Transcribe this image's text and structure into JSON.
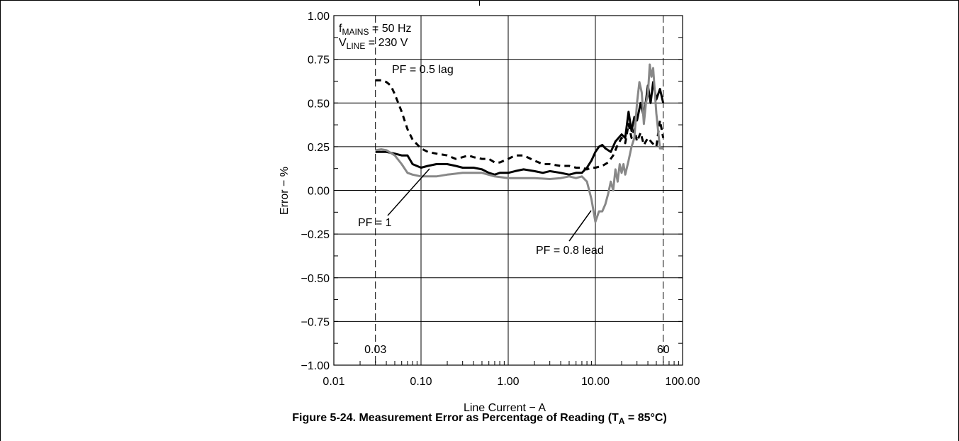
{
  "figure": {
    "caption_prefix": "Figure 5-24. Measurement Error as Percentage of Reading (T",
    "caption_sub": "A",
    "caption_suffix": " = 85°C)"
  },
  "chart_data": {
    "type": "line",
    "xscale": "log",
    "xlabel": "Line Current − A",
    "ylabel": "Error − %",
    "xlim": [
      0.01,
      100
    ],
    "ylim": [
      -1.0,
      1.0
    ],
    "grid": true,
    "x_ticks": [
      {
        "value": 0.01,
        "label": "0.01"
      },
      {
        "value": 0.1,
        "label": "0.10"
      },
      {
        "value": 1,
        "label": "1.00"
      },
      {
        "value": 10,
        "label": "10.00"
      },
      {
        "value": 100,
        "label": "100.00"
      }
    ],
    "y_ticks": [
      {
        "value": 1.0,
        "label": "1.00"
      },
      {
        "value": 0.75,
        "label": "0.75"
      },
      {
        "value": 0.5,
        "label": "0.50"
      },
      {
        "value": 0.25,
        "label": "0.25"
      },
      {
        "value": 0.0,
        "label": "0.00"
      },
      {
        "value": -0.25,
        "label": "−0.25"
      },
      {
        "value": -0.5,
        "label": "−0.50"
      },
      {
        "value": -0.75,
        "label": "−0.75"
      },
      {
        "value": -1.0,
        "label": "−1.00"
      }
    ],
    "conditions": {
      "line1_main": "f",
      "line1_sub": "MAINS",
      "line1_rest": " = 50 Hz",
      "line2_main": "V",
      "line2_sub": "LINE",
      "line2_rest": " = 230 V"
    },
    "markers": [
      {
        "x": 0.03,
        "label": "0.03"
      },
      {
        "x": 60,
        "label": "60"
      }
    ],
    "series": [
      {
        "name": "PF = 0.5 lag",
        "color": "#000000",
        "style": "dashed",
        "points": [
          [
            0.03,
            0.63
          ],
          [
            0.035,
            0.63
          ],
          [
            0.04,
            0.62
          ],
          [
            0.045,
            0.6
          ],
          [
            0.05,
            0.55
          ],
          [
            0.06,
            0.45
          ],
          [
            0.07,
            0.35
          ],
          [
            0.08,
            0.29
          ],
          [
            0.1,
            0.24
          ],
          [
            0.12,
            0.22
          ],
          [
            0.15,
            0.21
          ],
          [
            0.2,
            0.2
          ],
          [
            0.25,
            0.18
          ],
          [
            0.3,
            0.19
          ],
          [
            0.35,
            0.2
          ],
          [
            0.4,
            0.19
          ],
          [
            0.5,
            0.18
          ],
          [
            0.6,
            0.18
          ],
          [
            0.7,
            0.16
          ],
          [
            0.8,
            0.16
          ],
          [
            1.0,
            0.18
          ],
          [
            1.2,
            0.2
          ],
          [
            1.5,
            0.2
          ],
          [
            2.0,
            0.17
          ],
          [
            2.5,
            0.15
          ],
          [
            3,
            0.15
          ],
          [
            4,
            0.14
          ],
          [
            5,
            0.14
          ],
          [
            6,
            0.13
          ],
          [
            7,
            0.13
          ],
          [
            8,
            0.12
          ],
          [
            9,
            0.13
          ],
          [
            10,
            0.13
          ],
          [
            12,
            0.14
          ],
          [
            14,
            0.16
          ],
          [
            16,
            0.2
          ],
          [
            18,
            0.26
          ],
          [
            20,
            0.3
          ],
          [
            22,
            0.27
          ],
          [
            24,
            0.38
          ],
          [
            26,
            0.3
          ],
          [
            28,
            0.35
          ],
          [
            30,
            0.28
          ],
          [
            33,
            0.33
          ],
          [
            36,
            0.26
          ],
          [
            40,
            0.3
          ],
          [
            45,
            0.27
          ],
          [
            50,
            0.25
          ],
          [
            55,
            0.4
          ],
          [
            60,
            0.3
          ]
        ]
      },
      {
        "name": "PF = 1",
        "color": "#000000",
        "style": "solid",
        "points": [
          [
            0.03,
            0.22
          ],
          [
            0.04,
            0.22
          ],
          [
            0.05,
            0.21
          ],
          [
            0.06,
            0.2
          ],
          [
            0.07,
            0.2
          ],
          [
            0.08,
            0.15
          ],
          [
            0.1,
            0.13
          ],
          [
            0.12,
            0.14
          ],
          [
            0.15,
            0.15
          ],
          [
            0.2,
            0.15
          ],
          [
            0.25,
            0.14
          ],
          [
            0.3,
            0.13
          ],
          [
            0.4,
            0.13
          ],
          [
            0.5,
            0.12
          ],
          [
            0.6,
            0.1
          ],
          [
            0.7,
            0.09
          ],
          [
            0.8,
            0.1
          ],
          [
            1.0,
            0.1
          ],
          [
            1.2,
            0.11
          ],
          [
            1.5,
            0.12
          ],
          [
            2,
            0.11
          ],
          [
            2.5,
            0.1
          ],
          [
            3,
            0.11
          ],
          [
            4,
            0.1
          ],
          [
            5,
            0.09
          ],
          [
            6,
            0.1
          ],
          [
            7,
            0.1
          ],
          [
            8,
            0.13
          ],
          [
            9,
            0.17
          ],
          [
            10,
            0.22
          ],
          [
            11,
            0.25
          ],
          [
            12,
            0.26
          ],
          [
            13,
            0.24
          ],
          [
            15,
            0.22
          ],
          [
            17,
            0.28
          ],
          [
            20,
            0.32
          ],
          [
            22,
            0.3
          ],
          [
            24,
            0.45
          ],
          [
            26,
            0.34
          ],
          [
            28,
            0.42
          ],
          [
            30,
            0.4
          ],
          [
            33,
            0.5
          ],
          [
            36,
            0.42
          ],
          [
            40,
            0.6
          ],
          [
            43,
            0.5
          ],
          [
            46,
            0.62
          ],
          [
            50,
            0.52
          ],
          [
            55,
            0.58
          ],
          [
            60,
            0.5
          ]
        ]
      },
      {
        "name": "PF = 0.8 lead",
        "color": "#888888",
        "style": "solid",
        "points": [
          [
            0.03,
            0.23
          ],
          [
            0.035,
            0.235
          ],
          [
            0.04,
            0.23
          ],
          [
            0.05,
            0.2
          ],
          [
            0.06,
            0.15
          ],
          [
            0.07,
            0.1
          ],
          [
            0.08,
            0.09
          ],
          [
            0.1,
            0.08
          ],
          [
            0.15,
            0.08
          ],
          [
            0.2,
            0.09
          ],
          [
            0.3,
            0.1
          ],
          [
            0.4,
            0.1
          ],
          [
            0.5,
            0.1
          ],
          [
            0.7,
            0.08
          ],
          [
            1.0,
            0.07
          ],
          [
            1.5,
            0.07
          ],
          [
            2,
            0.07
          ],
          [
            3,
            0.065
          ],
          [
            4,
            0.07
          ],
          [
            5,
            0.08
          ],
          [
            6,
            0.07
          ],
          [
            7,
            0.08
          ],
          [
            8,
            0.05
          ],
          [
            9,
            -0.05
          ],
          [
            10,
            -0.18
          ],
          [
            11,
            -0.12
          ],
          [
            12,
            -0.12
          ],
          [
            13,
            -0.08
          ],
          [
            14,
            -0.02
          ],
          [
            15,
            0.05
          ],
          [
            16,
            0.0
          ],
          [
            17,
            0.12
          ],
          [
            18,
            0.05
          ],
          [
            19,
            0.15
          ],
          [
            20,
            0.1
          ],
          [
            21,
            0.15
          ],
          [
            22,
            0.09
          ],
          [
            24,
            0.17
          ],
          [
            26,
            0.25
          ],
          [
            28,
            0.3
          ],
          [
            30,
            0.5
          ],
          [
            32,
            0.62
          ],
          [
            34,
            0.56
          ],
          [
            36,
            0.38
          ],
          [
            38,
            0.5
          ],
          [
            40,
            0.55
          ],
          [
            42,
            0.72
          ],
          [
            44,
            0.65
          ],
          [
            46,
            0.7
          ],
          [
            50,
            0.44
          ],
          [
            55,
            0.24
          ],
          [
            60,
            0.24
          ]
        ]
      }
    ],
    "annotations": [
      {
        "text": "PF = 0.5 lag"
      },
      {
        "text": "PF = 1"
      },
      {
        "text": "PF = 0.8 lead"
      }
    ]
  }
}
